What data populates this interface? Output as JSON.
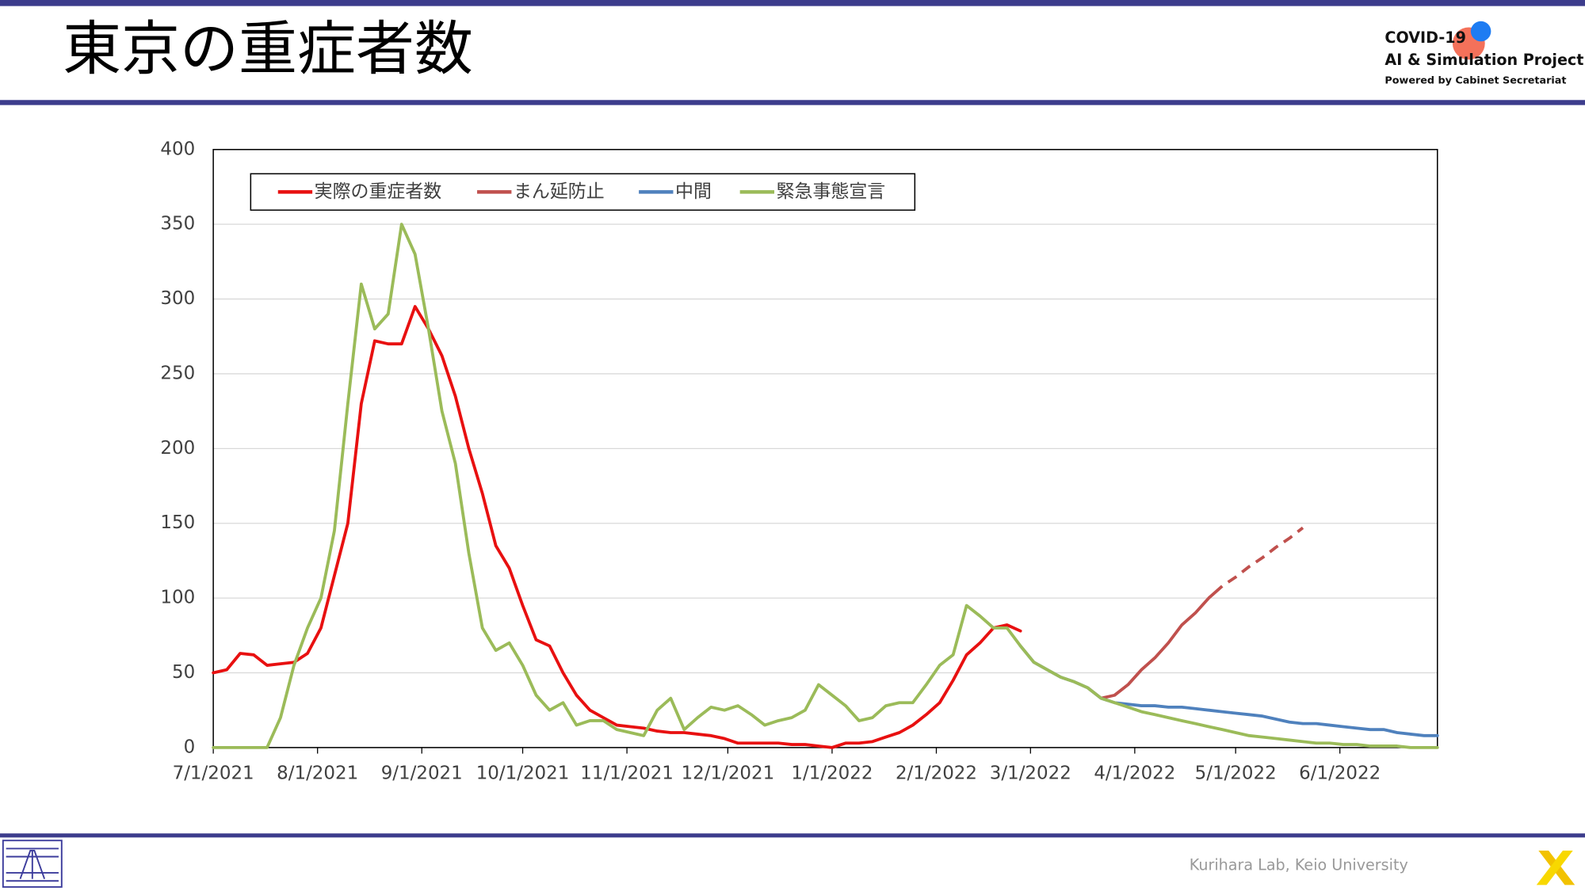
{
  "header": {
    "title": "東京の重症者数",
    "logo": [
      "COVID-19",
      "AI & Simulation Project",
      "Powered by Cabinet Secretariat"
    ]
  },
  "chart_data": {
    "type": "line",
    "x": [
      "7/1/2021",
      "7/5/2021",
      "7/9/2021",
      "7/13/2021",
      "7/17/2021",
      "7/21/2021",
      "7/25/2021",
      "7/29/2021",
      "8/2/2021",
      "8/6/2021",
      "8/10/2021",
      "8/14/2021",
      "8/18/2021",
      "8/22/2021",
      "8/26/2021",
      "8/30/2021",
      "9/3/2021",
      "9/7/2021",
      "9/11/2021",
      "9/15/2021",
      "9/19/2021",
      "9/23/2021",
      "9/27/2021",
      "10/1/2021",
      "10/5/2021",
      "10/9/2021",
      "10/13/2021",
      "10/17/2021",
      "10/21/2021",
      "10/25/2021",
      "10/29/2021",
      "11/2/2021",
      "11/6/2021",
      "11/10/2021",
      "11/14/2021",
      "11/18/2021",
      "11/22/2021",
      "11/26/2021",
      "11/30/2021",
      "12/4/2021",
      "12/8/2021",
      "12/12/2021",
      "12/16/2021",
      "12/20/2021",
      "12/24/2021",
      "12/28/2021",
      "1/1/2022",
      "1/5/2022",
      "1/9/2022",
      "1/13/2022",
      "1/17/2022",
      "1/21/2022",
      "1/25/2022",
      "1/29/2022",
      "2/2/2022",
      "2/6/2022",
      "2/10/2022",
      "2/14/2022",
      "2/18/2022",
      "2/22/2022",
      "2/26/2022",
      "3/2/2022",
      "3/6/2022",
      "3/10/2022",
      "3/14/2022",
      "3/18/2022",
      "3/22/2022",
      "3/26/2022",
      "3/30/2022",
      "4/3/2022",
      "4/7/2022",
      "4/11/2022",
      "4/15/2022",
      "4/19/2022",
      "4/23/2022",
      "4/27/2022",
      "5/1/2022",
      "5/5/2022",
      "5/9/2022",
      "5/13/2022",
      "5/17/2022",
      "5/21/2022",
      "5/25/2022",
      "5/29/2022",
      "6/2/2022",
      "6/6/2022",
      "6/10/2022",
      "6/14/2022",
      "6/18/2022",
      "6/22/2022",
      "6/26/2022",
      "6/30/2022"
    ],
    "series": [
      {
        "name": "実際の重症者数",
        "color": "#e81010",
        "values": [
          50,
          52,
          63,
          62,
          55,
          56,
          57,
          63,
          80,
          115,
          150,
          230,
          272,
          270,
          270,
          295,
          280,
          262,
          235,
          200,
          170,
          135,
          120,
          95,
          72,
          68,
          50,
          35,
          25,
          20,
          15,
          14,
          13,
          11,
          10,
          10,
          9,
          8,
          6,
          3,
          3,
          3,
          3,
          2,
          2,
          1,
          0,
          3,
          3,
          4,
          7,
          10,
          15,
          22,
          30,
          45,
          62,
          70,
          80,
          82,
          78,
          null,
          null,
          null,
          null,
          null,
          null,
          null,
          null,
          null,
          null,
          null,
          null,
          null,
          null,
          null,
          null,
          null,
          null,
          null,
          null,
          null,
          null,
          null,
          null,
          null,
          null,
          null,
          null,
          null,
          null,
          null
        ]
      },
      {
        "name": "まん延防止",
        "color": "#c0504d",
        "dash_from": "4/27/2022",
        "values": [
          null,
          null,
          null,
          null,
          null,
          null,
          null,
          null,
          null,
          null,
          null,
          null,
          null,
          null,
          null,
          null,
          null,
          null,
          null,
          null,
          null,
          null,
          null,
          null,
          null,
          null,
          null,
          null,
          null,
          null,
          null,
          null,
          null,
          null,
          null,
          null,
          null,
          null,
          null,
          null,
          null,
          null,
          null,
          null,
          null,
          null,
          null,
          null,
          null,
          null,
          null,
          null,
          null,
          null,
          null,
          null,
          null,
          null,
          null,
          null,
          null,
          null,
          null,
          null,
          null,
          40,
          33,
          35,
          42,
          52,
          60,
          70,
          82,
          90,
          100,
          108,
          114,
          121,
          127,
          134,
          140,
          147,
          null,
          null,
          null,
          null,
          null,
          null,
          null,
          null,
          null,
          null
        ]
      },
      {
        "name": "中間",
        "color": "#4f81bd",
        "values": [
          null,
          null,
          null,
          null,
          null,
          null,
          null,
          null,
          null,
          null,
          null,
          null,
          null,
          null,
          null,
          null,
          null,
          null,
          null,
          null,
          null,
          null,
          null,
          null,
          null,
          null,
          null,
          null,
          null,
          null,
          null,
          null,
          null,
          null,
          null,
          null,
          null,
          null,
          null,
          null,
          null,
          null,
          null,
          null,
          null,
          null,
          null,
          null,
          null,
          null,
          null,
          null,
          null,
          null,
          null,
          null,
          null,
          null,
          null,
          null,
          68,
          57,
          52,
          47,
          44,
          40,
          33,
          30,
          29,
          28,
          28,
          27,
          27,
          26,
          25,
          24,
          23,
          22,
          21,
          19,
          17,
          16,
          16,
          15,
          14,
          13,
          12,
          12,
          10,
          9,
          8,
          8
        ]
      },
      {
        "name": "緊急事態宣言",
        "color": "#9bbb59",
        "values": [
          0,
          0,
          0,
          0,
          0,
          20,
          55,
          80,
          100,
          145,
          230,
          310,
          280,
          290,
          350,
          330,
          280,
          225,
          190,
          130,
          80,
          65,
          70,
          55,
          35,
          25,
          30,
          15,
          18,
          18,
          12,
          10,
          8,
          25,
          33,
          12,
          20,
          27,
          25,
          28,
          22,
          15,
          18,
          20,
          25,
          42,
          35,
          28,
          18,
          20,
          28,
          30,
          30,
          42,
          55,
          62,
          95,
          88,
          80,
          80,
          68,
          57,
          52,
          47,
          44,
          40,
          33,
          30,
          27,
          24,
          22,
          20,
          18,
          16,
          14,
          12,
          10,
          8,
          7,
          6,
          5,
          4,
          3,
          3,
          2,
          2,
          1,
          1,
          1,
          0,
          0,
          0
        ]
      }
    ],
    "xlim": [
      "7/1/2021",
      "6/30/2022"
    ],
    "xticks": [
      "7/1/2021",
      "8/1/2021",
      "9/1/2021",
      "10/1/2021",
      "11/1/2021",
      "12/1/2021",
      "1/1/2022",
      "2/1/2022",
      "3/1/2022",
      "4/1/2022",
      "5/1/2022",
      "6/1/2022"
    ],
    "ylim": [
      0,
      400
    ],
    "yticks": [
      0,
      50,
      100,
      150,
      200,
      250,
      300,
      350,
      400
    ],
    "grid": true,
    "legend": "upper left"
  },
  "footer": {
    "credit": "Kurihara Lab, Keio University"
  }
}
